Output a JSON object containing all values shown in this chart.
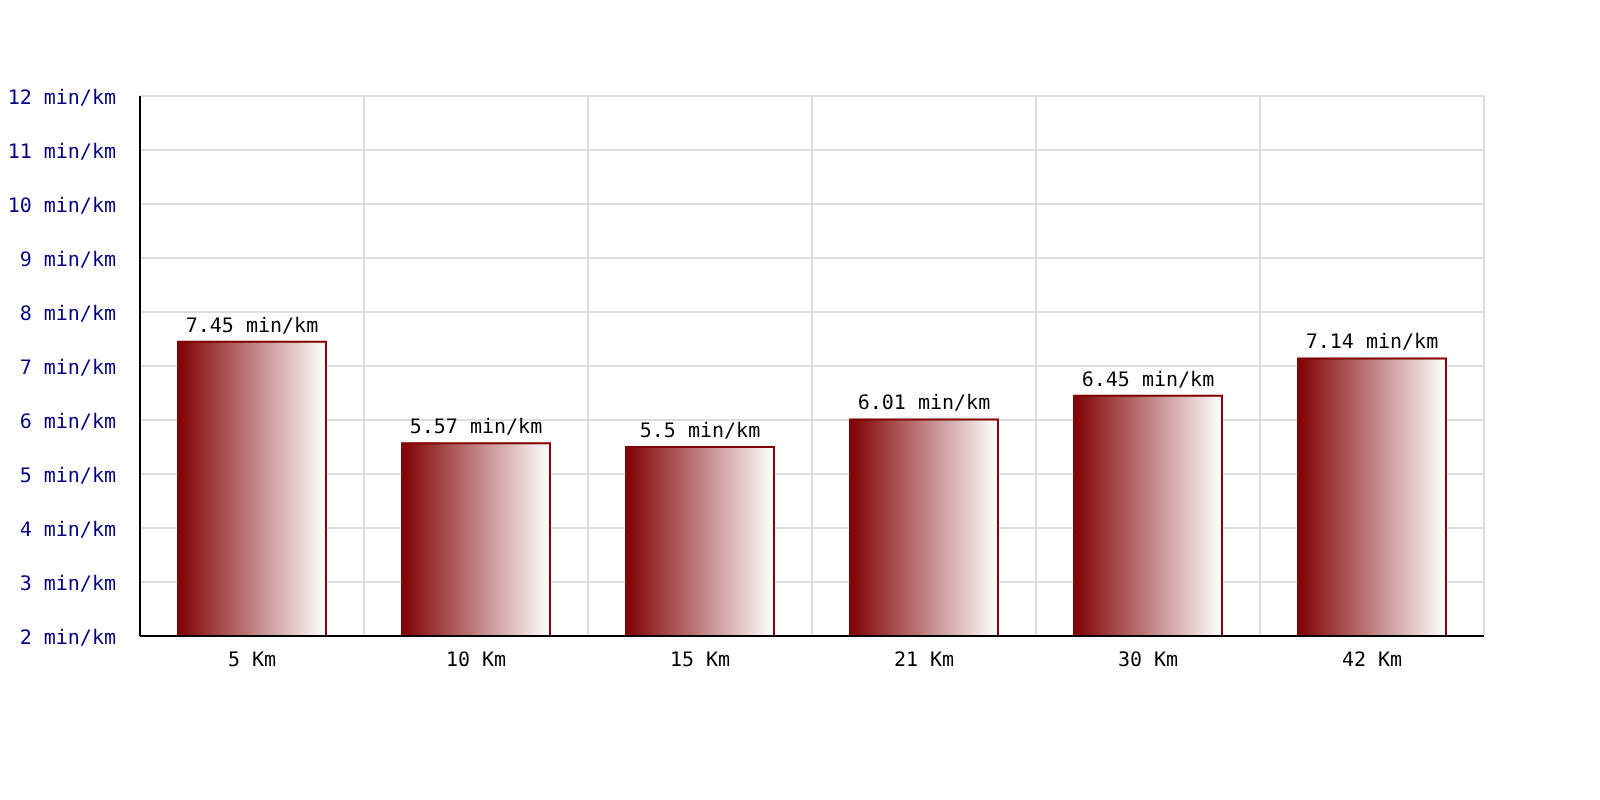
{
  "chart_data": {
    "type": "bar",
    "categories": [
      "5 Km",
      "10 Km",
      "15 Km",
      "21 Km",
      "30 Km",
      "42 Km"
    ],
    "values": [
      7.45,
      5.57,
      5.5,
      6.01,
      6.45,
      7.14
    ],
    "value_labels": [
      "7.45 min/km",
      "5.57 min/km",
      "5.5 min/km",
      "6.01 min/km",
      "6.45 min/km",
      "7.14 min/km"
    ],
    "color": "#800000",
    "ylim": [
      2,
      12
    ],
    "yticks": [
      {
        "value": 2,
        "label": "2 min/km"
      },
      {
        "value": 3,
        "label": "3 min/km"
      },
      {
        "value": 4,
        "label": "4 min/km"
      },
      {
        "value": 5,
        "label": "5 min/km"
      },
      {
        "value": 6,
        "label": "6 min/km"
      },
      {
        "value": 7,
        "label": "7 min/km"
      },
      {
        "value": 8,
        "label": "8 min/km"
      },
      {
        "value": 9,
        "label": "9 min/km"
      },
      {
        "value": 10,
        "label": "10 min/km"
      },
      {
        "value": 11,
        "label": "11 min/km"
      },
      {
        "value": 12,
        "label": "12 min/km"
      }
    ],
    "grid": true
  }
}
